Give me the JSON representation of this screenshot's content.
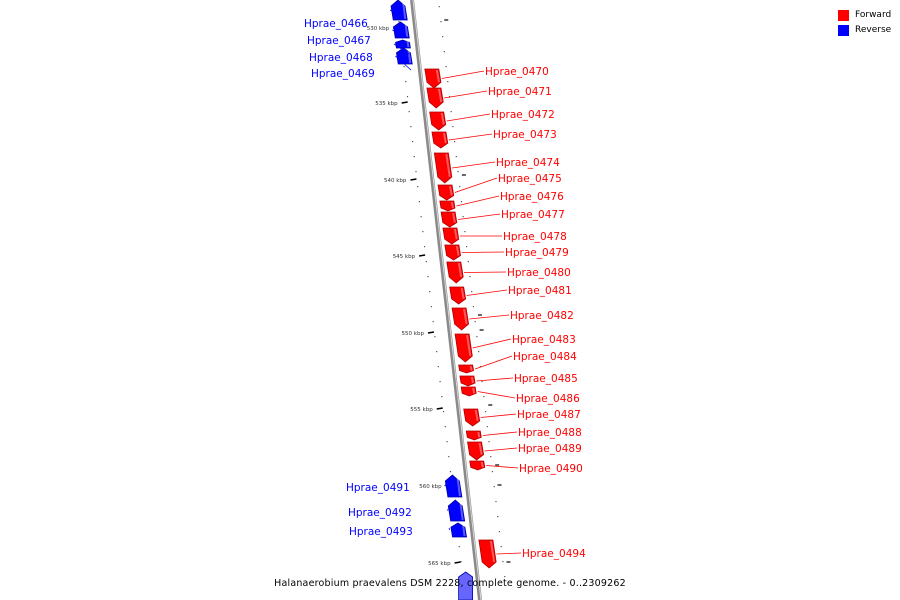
{
  "legend": {
    "forward_label": "Forward",
    "forward_color": "#ff0000",
    "reverse_label": "Reverse",
    "reverse_color": "#0000ff"
  },
  "caption": "Halanaerobium praevalens DSM 2228, complete genome. - 0..2309262",
  "scale_ticks": [
    "530 kbp",
    "535 kbp",
    "540 kbp",
    "545 kbp",
    "550 kbp",
    "555 kbp",
    "560 kbp",
    "565 kbp"
  ],
  "genes": [
    {
      "name": "Hprae_0466",
      "strand": "reverse"
    },
    {
      "name": "Hprae_0467",
      "strand": "reverse"
    },
    {
      "name": "Hprae_0468",
      "strand": "reverse"
    },
    {
      "name": "Hprae_0469",
      "strand": "reverse"
    },
    {
      "name": "Hprae_0470",
      "strand": "forward"
    },
    {
      "name": "Hprae_0471",
      "strand": "forward"
    },
    {
      "name": "Hprae_0472",
      "strand": "forward"
    },
    {
      "name": "Hprae_0473",
      "strand": "forward"
    },
    {
      "name": "Hprae_0474",
      "strand": "forward"
    },
    {
      "name": "Hprae_0475",
      "strand": "forward"
    },
    {
      "name": "Hprae_0476",
      "strand": "forward"
    },
    {
      "name": "Hprae_0477",
      "strand": "forward"
    },
    {
      "name": "Hprae_0478",
      "strand": "forward"
    },
    {
      "name": "Hprae_0479",
      "strand": "forward"
    },
    {
      "name": "Hprae_0480",
      "strand": "forward"
    },
    {
      "name": "Hprae_0481",
      "strand": "forward"
    },
    {
      "name": "Hprae_0482",
      "strand": "forward"
    },
    {
      "name": "Hprae_0483",
      "strand": "forward"
    },
    {
      "name": "Hprae_0484",
      "strand": "forward"
    },
    {
      "name": "Hprae_0485",
      "strand": "forward"
    },
    {
      "name": "Hprae_0486",
      "strand": "forward"
    },
    {
      "name": "Hprae_0487",
      "strand": "forward"
    },
    {
      "name": "Hprae_0488",
      "strand": "forward"
    },
    {
      "name": "Hprae_0489",
      "strand": "forward"
    },
    {
      "name": "Hprae_0490",
      "strand": "forward"
    },
    {
      "name": "Hprae_0491",
      "strand": "reverse"
    },
    {
      "name": "Hprae_0492",
      "strand": "reverse"
    },
    {
      "name": "Hprae_0493",
      "strand": "reverse"
    },
    {
      "name": "Hprae_0494",
      "strand": "forward"
    }
  ]
}
